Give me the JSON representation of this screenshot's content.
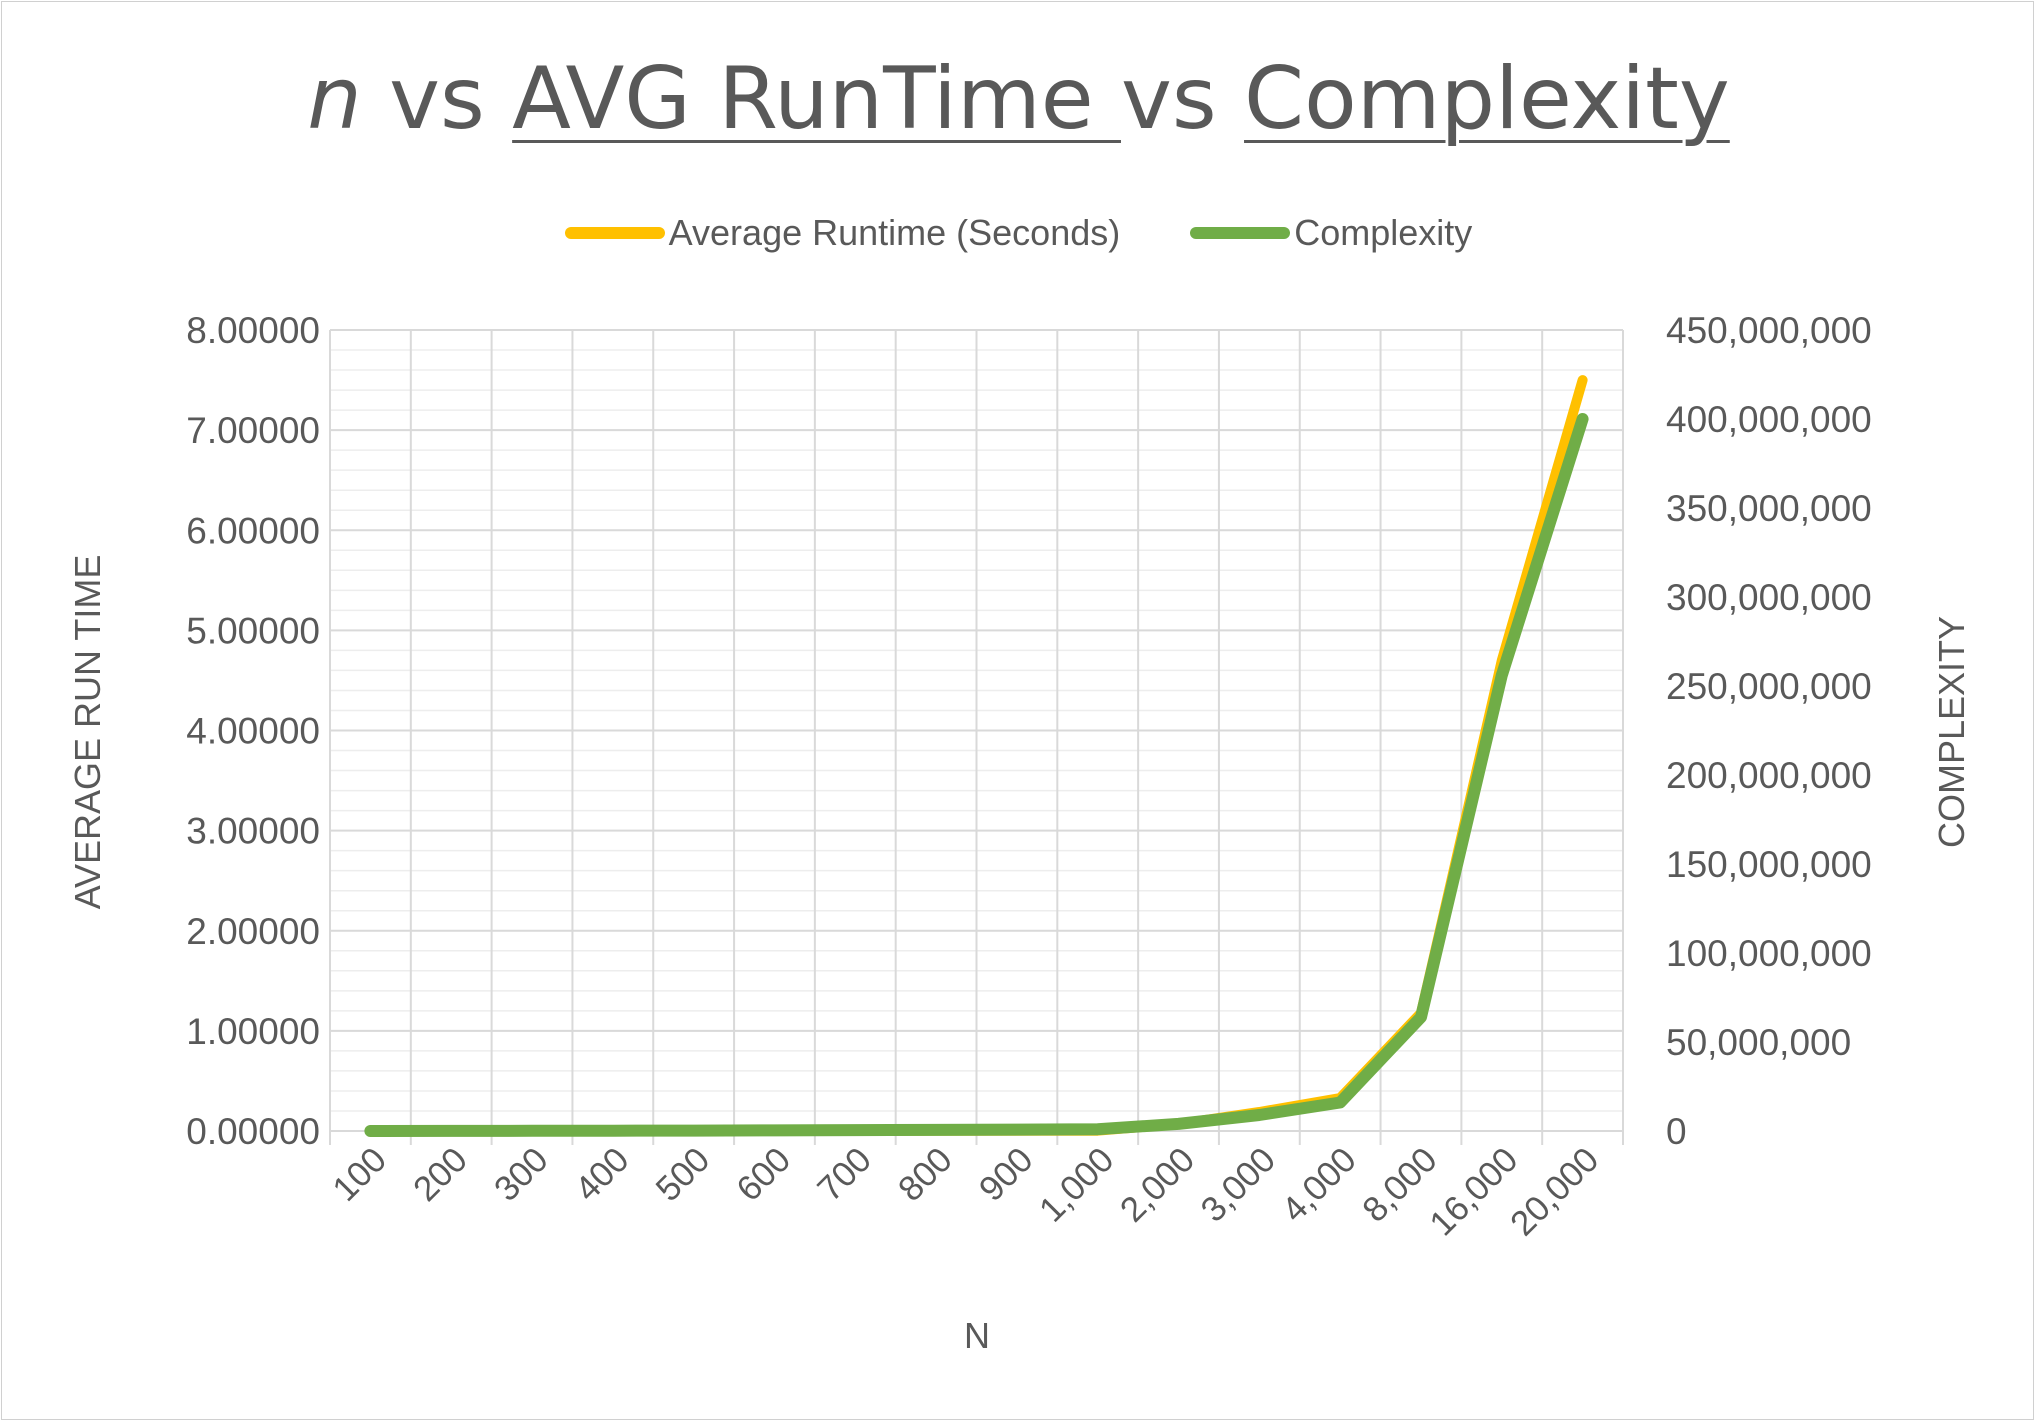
{
  "title": {
    "part1": "n",
    "part2": " vs ",
    "part3": "AVG RunTime ",
    "part4": "vs ",
    "part5": "Complexity"
  },
  "colors": {
    "runtime": "#FFC000",
    "complexity": "#70AD47",
    "grid_major": "#D9D9D9",
    "grid_minor": "#EDEDED",
    "text": "#595959"
  },
  "chart_data": {
    "type": "line",
    "categories": [
      "100",
      "200",
      "300",
      "400",
      "500",
      "600",
      "700",
      "800",
      "900",
      "1,000",
      "2,000",
      "3,000",
      "4,000",
      "8,000",
      "16,000",
      "20,000"
    ],
    "series": [
      {
        "name": "Average Runtime (Seconds)",
        "axis": "left",
        "color": "#FFC000",
        "values": [
          0.0,
          0.0001,
          0.0002,
          0.0004,
          0.0006,
          0.0009,
          0.0013,
          0.0017,
          0.0021,
          0.0026,
          0.07,
          0.19,
          0.33,
          1.18,
          4.7,
          7.5
        ]
      },
      {
        "name": "Complexity",
        "axis": "right",
        "color": "#70AD47",
        "values": [
          10000,
          40000,
          90000,
          160000,
          250000,
          360000,
          490000,
          640000,
          810000,
          1000000,
          4000000,
          9000000,
          16000000,
          64000000,
          256000000,
          400000000
        ]
      }
    ],
    "xlabel": "N",
    "ylabel_left": "AVERAGE RUN TIME",
    "ylabel_right": "COMPLEXITY",
    "ylim_left": [
      0,
      8
    ],
    "ylim_right": [
      0,
      450000000
    ],
    "yticks_left": [
      "0.00000",
      "1.00000",
      "2.00000",
      "3.00000",
      "4.00000",
      "5.00000",
      "6.00000",
      "7.00000",
      "8.00000"
    ],
    "yticks_right": [
      "0",
      "50,000,000",
      "100,000,000",
      "150,000,000",
      "200,000,000",
      "250,000,000",
      "300,000,000",
      "350,000,000",
      "400,000,000",
      "450,000,000"
    ],
    "grid": true,
    "legend_position": "top"
  }
}
